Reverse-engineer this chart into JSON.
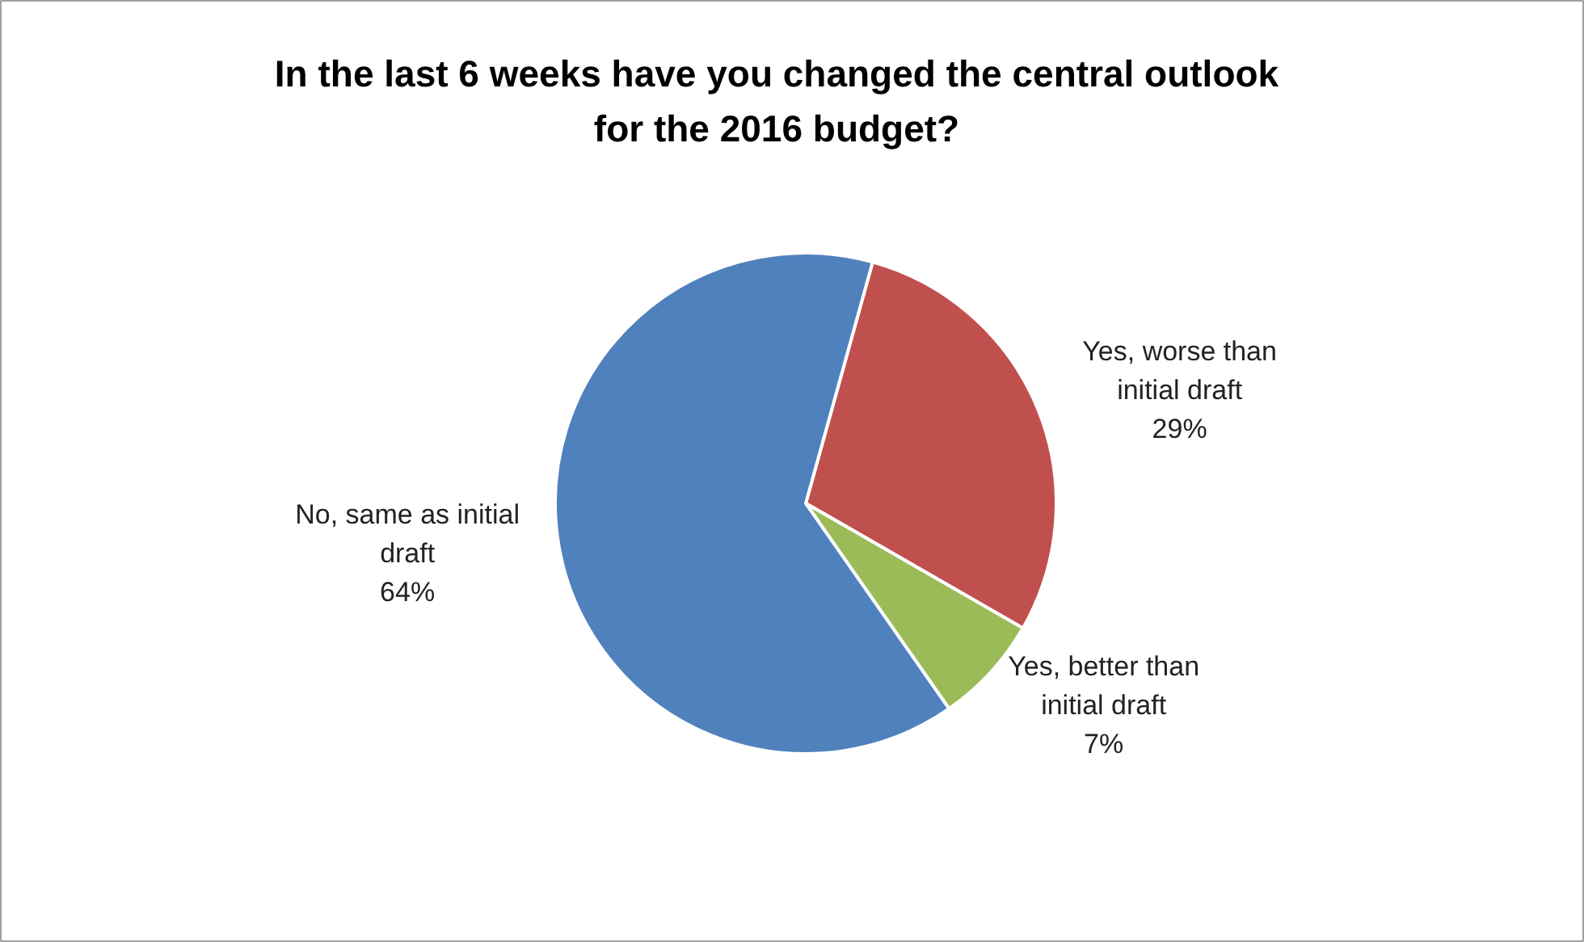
{
  "chart_data": {
    "type": "pie",
    "title": "In the last 6 weeks have you changed the central outlook for the 2016 budget?",
    "categories": [
      "Yes, worse than initial draft",
      "Yes, better than initial draft",
      "No, same as initial draft"
    ],
    "values": [
      29,
      7,
      64
    ],
    "colors": [
      "#c0504d",
      "#9bbb59",
      "#4f81bd"
    ],
    "value_labels": [
      "29%",
      "7%",
      "64%"
    ]
  }
}
